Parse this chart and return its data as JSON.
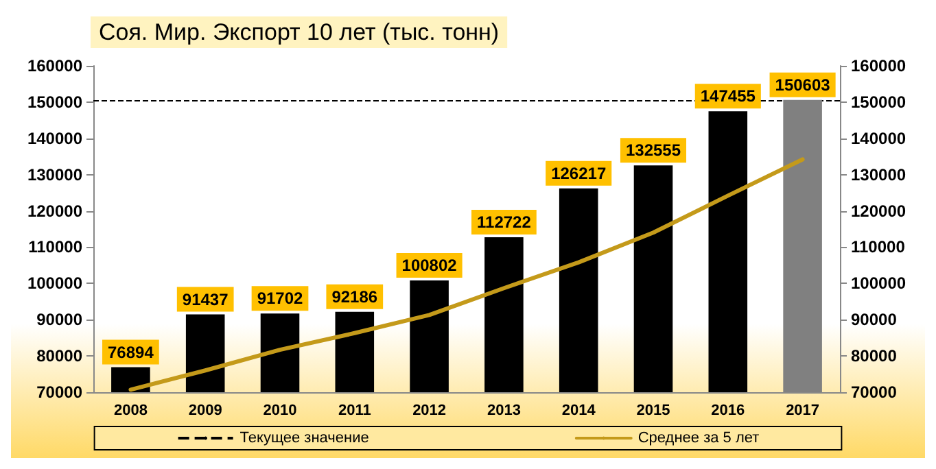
{
  "chart_data": {
    "type": "bar",
    "title": "Соя. Мир. Экспорт 10 лет (тыс. тонн)",
    "categories": [
      "2008",
      "2009",
      "2010",
      "2011",
      "2012",
      "2013",
      "2014",
      "2015",
      "2016",
      "2017"
    ],
    "series": [
      {
        "colors": [
          "#000000",
          "#000000",
          "#000000",
          "#000000",
          "#000000",
          "#000000",
          "#000000",
          "#000000",
          "#000000",
          "#808080"
        ],
        "values": [
          76894,
          91437,
          91702,
          92186,
          100802,
          112722,
          126217,
          132555,
          147455,
          150603
        ],
        "value_labels": [
          "76894",
          "91437",
          "91702",
          "92186",
          "100802",
          "112722",
          "126217",
          "132555",
          "147455",
          "150603"
        ]
      },
      {
        "type": "line",
        "name": "Среднее за 5 лет",
        "color": "#c49a1a",
        "values": [
          70700,
          76000,
          81700,
          86300,
          91300,
          98700,
          105800,
          114000,
          124200,
          134200
        ]
      }
    ],
    "ref_lines": [
      {
        "axis": "y",
        "value": 150603,
        "label": "Текущее значение",
        "line_style": "dashed",
        "color": "#000000"
      }
    ],
    "ylim": [
      70000,
      160000
    ],
    "yticks": [
      70000,
      80000,
      90000,
      100000,
      110000,
      120000,
      130000,
      140000,
      150000,
      160000
    ],
    "y2lim": [
      70000,
      160000
    ],
    "y2ticks": [
      70000,
      80000,
      90000,
      100000,
      110000,
      120000,
      130000,
      140000,
      150000,
      160000
    ],
    "grid": false,
    "legend": "bottom",
    "marker": "none",
    "line_style": "solid"
  }
}
